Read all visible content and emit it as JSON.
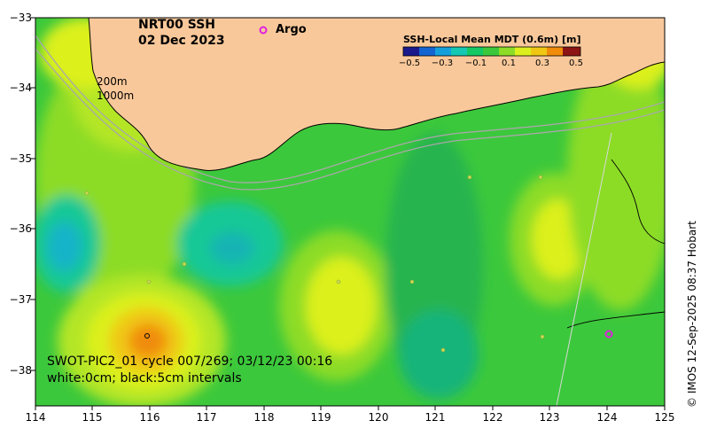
{
  "title": {
    "line1": "NRT00 SSH",
    "line2": "02 Dec 2023"
  },
  "legend": {
    "argo_label": "Argo",
    "argo_color": "#e020e0"
  },
  "contours": {
    "label_200": "200m",
    "label_1000": "1000m"
  },
  "colorbar": {
    "title": "SSH-Local Mean MDT (0.6m) [m]",
    "ticks": [
      "−0.5",
      "−0.3",
      "−0.1",
      "0.1",
      "0.3",
      "0.5"
    ],
    "colors": [
      "#1a1a8c",
      "#1464d2",
      "#14b4e6",
      "#14c896",
      "#3cc83c",
      "#8cdc28",
      "#dcf01e",
      "#f0c814",
      "#f08c0a",
      "#c83c0a",
      "#8c1414"
    ]
  },
  "y_axis": {
    "ticks": [
      "−33",
      "−34",
      "−35",
      "−36",
      "−37",
      "−38"
    ]
  },
  "x_axis": {
    "ticks": [
      "114",
      "115",
      "116",
      "117",
      "118",
      "119",
      "120",
      "121",
      "122",
      "123",
      "124",
      "125"
    ]
  },
  "pass_info": {
    "line1": "SWOT-PIC2_01 cycle 007/269; 03/12/23 00:16",
    "line2": "white:0cm; black:5cm intervals"
  },
  "credit": "© IMOS 12-Sep-2025 08:37 Hobart",
  "colors": {
    "land": "#f9c89a",
    "background_field": "#3cc83c"
  }
}
